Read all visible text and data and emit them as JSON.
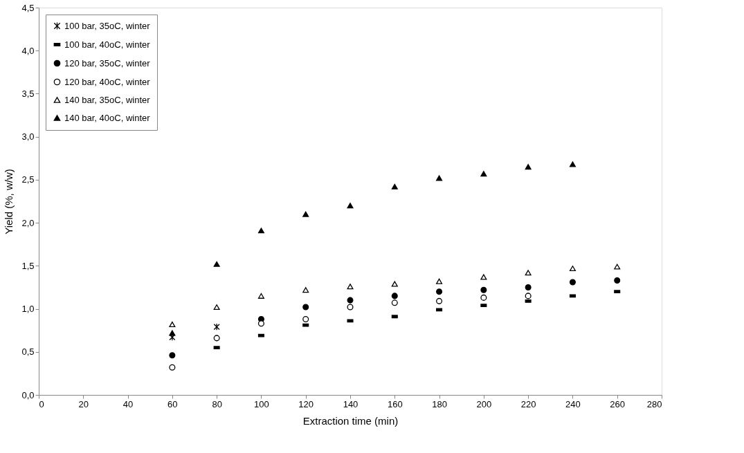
{
  "chart_data": {
    "type": "scatter",
    "xlabel": "Extraction time (min)",
    "ylabel": "Yield (%, w/w)",
    "xlim": [
      0,
      280
    ],
    "xticks": [
      0,
      20,
      40,
      60,
      80,
      100,
      120,
      140,
      160,
      180,
      200,
      220,
      240,
      260,
      280
    ],
    "ylim": [
      0,
      4.5
    ],
    "yticks": [
      {
        "value": 0,
        "label": "0,0"
      },
      {
        "value": 0.5,
        "label": "0,5"
      },
      {
        "value": 1,
        "label": "1,0"
      },
      {
        "value": 1.5,
        "label": "1,5"
      },
      {
        "value": 2,
        "label": "2,0"
      },
      {
        "value": 2.5,
        "label": "2,5"
      },
      {
        "value": 3,
        "label": "3,0"
      },
      {
        "value": 3.5,
        "label": "3,5"
      },
      {
        "value": 4,
        "label": "4,0"
      },
      {
        "value": 4.5,
        "label": "4,5"
      }
    ],
    "grid": false,
    "legend": "top left",
    "series": [
      {
        "name": "100 bar, 35oC, winter",
        "color": "#000000",
        "marker": "cross",
        "x": [
          60,
          80
        ],
        "values": [
          0.67,
          0.79
        ]
      },
      {
        "name": "100 bar, 40oC, winter",
        "color": "#000000",
        "marker": "square",
        "x": [
          80,
          100,
          120,
          140,
          160,
          180,
          200,
          220,
          240,
          260
        ],
        "values": [
          0.55,
          0.69,
          0.81,
          0.86,
          0.91,
          0.99,
          1.04,
          1.09,
          1.15,
          1.2
        ]
      },
      {
        "name": "120 bar, 35oC, winter",
        "color": "#000000",
        "marker": "circle",
        "x": [
          60,
          80,
          100,
          120,
          140,
          160,
          180,
          200,
          220,
          240,
          260
        ],
        "values": [
          0.46,
          null,
          0.88,
          1.02,
          1.1,
          1.15,
          1.2,
          1.22,
          1.25,
          1.31,
          1.33
        ]
      },
      {
        "name": "120 bar, 40oC, winter",
        "color": "#000000",
        "marker": "circle",
        "x": [
          60,
          80,
          100,
          120,
          140,
          160,
          180,
          200,
          220
        ],
        "values": [
          0.32,
          0.66,
          0.83,
          0.88,
          1.02,
          1.07,
          1.09,
          1.13,
          1.15
        ]
      },
      {
        "name": "140 bar, 35oC, winter",
        "color": "#000000",
        "marker": "triangle",
        "x": [
          60,
          80,
          100,
          120,
          140,
          160,
          180,
          200,
          220,
          240,
          260
        ],
        "values": [
          0.82,
          1.02,
          1.15,
          1.22,
          1.26,
          1.29,
          1.32,
          1.37,
          1.42,
          1.47,
          1.49
        ]
      },
      {
        "name": "140 bar, 40oC, winter",
        "color": "#000000",
        "marker": "triangle",
        "x": [
          60,
          80,
          100,
          120,
          140,
          160,
          180,
          200,
          220,
          240
        ],
        "values": [
          0.72,
          1.52,
          1.91,
          2.1,
          2.2,
          2.42,
          2.52,
          2.57,
          2.65,
          2.68
        ]
      }
    ]
  }
}
